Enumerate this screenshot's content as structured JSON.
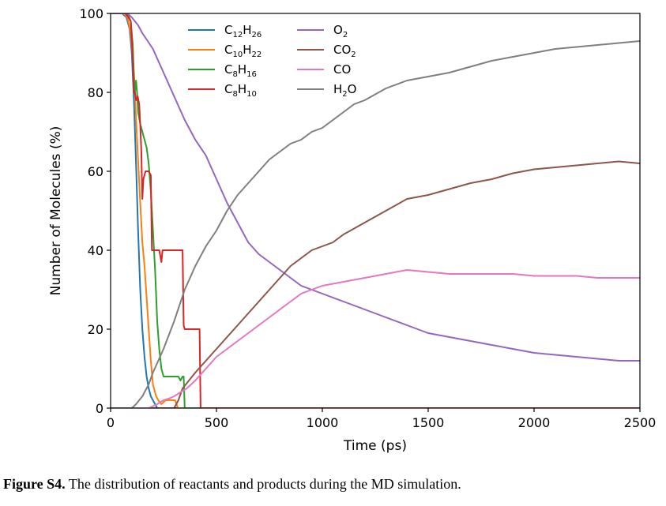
{
  "caption": {
    "label": "Figure S4.",
    "text": " The distribution of reactants and products during the MD simulation."
  },
  "chart_data": {
    "type": "line",
    "xlabel": "Time (ps)",
    "ylabel": "Number of Molecules (%)",
    "xlim": [
      0,
      2500
    ],
    "ylim": [
      0,
      100
    ],
    "xticks": [
      0,
      500,
      1000,
      1500,
      2000,
      2500
    ],
    "yticks": [
      0,
      20,
      40,
      60,
      80,
      100
    ],
    "grid": false,
    "legend_position": "top-center",
    "series": [
      {
        "name": "C12H26",
        "label_parts": [
          [
            "C",
            ""
          ],
          [
            "12",
            "sub"
          ],
          [
            "H",
            ""
          ],
          [
            "26",
            "sub"
          ]
        ],
        "color": "#1f77b4",
        "points": [
          [
            0,
            100
          ],
          [
            55,
            100
          ],
          [
            75,
            99
          ],
          [
            90,
            96
          ],
          [
            100,
            90
          ],
          [
            110,
            78
          ],
          [
            120,
            62
          ],
          [
            130,
            45
          ],
          [
            140,
            30
          ],
          [
            150,
            20
          ],
          [
            160,
            13
          ],
          [
            170,
            8
          ],
          [
            180,
            5
          ],
          [
            190,
            3
          ],
          [
            200,
            2
          ],
          [
            210,
            1
          ],
          [
            220,
            0
          ],
          [
            2500,
            0
          ]
        ]
      },
      {
        "name": "C10H22",
        "label_parts": [
          [
            "C",
            ""
          ],
          [
            "10",
            "sub"
          ],
          [
            "H",
            ""
          ],
          [
            "22",
            "sub"
          ]
        ],
        "color": "#ff7f0e",
        "points": [
          [
            0,
            100
          ],
          [
            60,
            100
          ],
          [
            80,
            99
          ],
          [
            95,
            95
          ],
          [
            110,
            85
          ],
          [
            125,
            68
          ],
          [
            140,
            52
          ],
          [
            150,
            42
          ],
          [
            160,
            36
          ],
          [
            170,
            28
          ],
          [
            180,
            20
          ],
          [
            190,
            12
          ],
          [
            200,
            6
          ],
          [
            215,
            3
          ],
          [
            225,
            2
          ],
          [
            240,
            1
          ],
          [
            260,
            2
          ],
          [
            290,
            2
          ],
          [
            305,
            2
          ],
          [
            318,
            0
          ],
          [
            2500,
            0
          ]
        ]
      },
      {
        "name": "C8H16",
        "label_parts": [
          [
            "C",
            ""
          ],
          [
            "8",
            "sub"
          ],
          [
            "H",
            ""
          ],
          [
            "16",
            "sub"
          ]
        ],
        "color": "#2ca02c",
        "points": [
          [
            0,
            100
          ],
          [
            60,
            100
          ],
          [
            80,
            100
          ],
          [
            95,
            98
          ],
          [
            105,
            92
          ],
          [
            110,
            84
          ],
          [
            115,
            80
          ],
          [
            120,
            83
          ],
          [
            125,
            80
          ],
          [
            130,
            75
          ],
          [
            140,
            72
          ],
          [
            150,
            70
          ],
          [
            160,
            68
          ],
          [
            170,
            66
          ],
          [
            180,
            62
          ],
          [
            190,
            55
          ],
          [
            200,
            45
          ],
          [
            210,
            35
          ],
          [
            220,
            22
          ],
          [
            230,
            15
          ],
          [
            240,
            10
          ],
          [
            250,
            8
          ],
          [
            260,
            8
          ],
          [
            280,
            8
          ],
          [
            300,
            8
          ],
          [
            320,
            8
          ],
          [
            330,
            7
          ],
          [
            340,
            8
          ],
          [
            345,
            8
          ],
          [
            350,
            0
          ],
          [
            2500,
            0
          ]
        ]
      },
      {
        "name": "C8H10",
        "label_parts": [
          [
            "C",
            ""
          ],
          [
            "8",
            "sub"
          ],
          [
            "H",
            ""
          ],
          [
            "10",
            "sub"
          ]
        ],
        "color": "#d62728",
        "points": [
          [
            0,
            100
          ],
          [
            70,
            100
          ],
          [
            85,
            99
          ],
          [
            95,
            98
          ],
          [
            100,
            94
          ],
          [
            105,
            88
          ],
          [
            110,
            80
          ],
          [
            115,
            80
          ],
          [
            120,
            78
          ],
          [
            128,
            79
          ],
          [
            135,
            77
          ],
          [
            140,
            72
          ],
          [
            145,
            65
          ],
          [
            150,
            53
          ],
          [
            155,
            58
          ],
          [
            160,
            59
          ],
          [
            165,
            60
          ],
          [
            180,
            60
          ],
          [
            190,
            59
          ],
          [
            195,
            40
          ],
          [
            200,
            40
          ],
          [
            230,
            40
          ],
          [
            240,
            37
          ],
          [
            245,
            40
          ],
          [
            260,
            40
          ],
          [
            300,
            40
          ],
          [
            330,
            40
          ],
          [
            340,
            40
          ],
          [
            345,
            21
          ],
          [
            350,
            20
          ],
          [
            380,
            20
          ],
          [
            410,
            20
          ],
          [
            420,
            20
          ],
          [
            425,
            0
          ],
          [
            2500,
            0
          ]
        ]
      },
      {
        "name": "O2",
        "label_parts": [
          [
            "O",
            ""
          ],
          [
            "2",
            "sub"
          ]
        ],
        "color": "#9467bd",
        "points": [
          [
            0,
            100
          ],
          [
            50,
            100
          ],
          [
            80,
            100
          ],
          [
            100,
            99
          ],
          [
            130,
            97
          ],
          [
            150,
            95
          ],
          [
            200,
            91
          ],
          [
            250,
            85
          ],
          [
            300,
            79
          ],
          [
            350,
            73
          ],
          [
            400,
            68
          ],
          [
            450,
            64
          ],
          [
            500,
            58
          ],
          [
            550,
            52
          ],
          [
            600,
            47
          ],
          [
            650,
            42
          ],
          [
            700,
            39
          ],
          [
            750,
            37
          ],
          [
            800,
            35
          ],
          [
            850,
            33
          ],
          [
            900,
            31
          ],
          [
            950,
            30
          ],
          [
            1000,
            29
          ],
          [
            1100,
            27
          ],
          [
            1200,
            25
          ],
          [
            1300,
            23
          ],
          [
            1400,
            21
          ],
          [
            1500,
            19
          ],
          [
            1600,
            18
          ],
          [
            1700,
            17
          ],
          [
            1800,
            16
          ],
          [
            1900,
            15
          ],
          [
            2000,
            14
          ],
          [
            2100,
            13.5
          ],
          [
            2200,
            13
          ],
          [
            2300,
            12.5
          ],
          [
            2400,
            12
          ],
          [
            2500,
            12
          ]
        ]
      },
      {
        "name": "CO2",
        "label_parts": [
          [
            "CO",
            ""
          ],
          [
            "2",
            "sub"
          ]
        ],
        "color": "#8c564b",
        "points": [
          [
            0,
            0
          ],
          [
            300,
            0
          ],
          [
            320,
            2
          ],
          [
            340,
            5
          ],
          [
            370,
            7
          ],
          [
            400,
            9
          ],
          [
            450,
            12
          ],
          [
            500,
            15
          ],
          [
            550,
            18
          ],
          [
            600,
            21
          ],
          [
            650,
            24
          ],
          [
            700,
            27
          ],
          [
            750,
            30
          ],
          [
            800,
            33
          ],
          [
            850,
            36
          ],
          [
            900,
            38
          ],
          [
            950,
            40
          ],
          [
            1000,
            41
          ],
          [
            1050,
            42
          ],
          [
            1100,
            44
          ],
          [
            1200,
            47
          ],
          [
            1300,
            50
          ],
          [
            1400,
            53
          ],
          [
            1500,
            54
          ],
          [
            1600,
            55.5
          ],
          [
            1700,
            57
          ],
          [
            1800,
            58
          ],
          [
            1900,
            59.5
          ],
          [
            2000,
            60.5
          ],
          [
            2100,
            61
          ],
          [
            2200,
            61.5
          ],
          [
            2300,
            62
          ],
          [
            2400,
            62.5
          ],
          [
            2500,
            62
          ]
        ]
      },
      {
        "name": "CO",
        "label_parts": [
          [
            "CO",
            ""
          ]
        ],
        "color": "#e377c2",
        "points": [
          [
            0,
            0
          ],
          [
            180,
            0
          ],
          [
            200,
            0.5
          ],
          [
            220,
            1
          ],
          [
            250,
            2
          ],
          [
            280,
            2.5
          ],
          [
            300,
            3
          ],
          [
            330,
            4
          ],
          [
            360,
            5
          ],
          [
            400,
            7
          ],
          [
            450,
            10
          ],
          [
            500,
            13
          ],
          [
            550,
            15
          ],
          [
            600,
            17
          ],
          [
            650,
            19
          ],
          [
            700,
            21
          ],
          [
            750,
            23
          ],
          [
            800,
            25
          ],
          [
            850,
            27
          ],
          [
            900,
            29
          ],
          [
            950,
            30
          ],
          [
            1000,
            31
          ],
          [
            1100,
            32
          ],
          [
            1200,
            33
          ],
          [
            1300,
            34
          ],
          [
            1400,
            35
          ],
          [
            1500,
            34.5
          ],
          [
            1600,
            34
          ],
          [
            1700,
            34
          ],
          [
            1800,
            34
          ],
          [
            1900,
            34
          ],
          [
            2000,
            33.5
          ],
          [
            2100,
            33.5
          ],
          [
            2200,
            33.5
          ],
          [
            2300,
            33
          ],
          [
            2400,
            33
          ],
          [
            2500,
            33
          ]
        ]
      },
      {
        "name": "H2O",
        "label_parts": [
          [
            "H",
            ""
          ],
          [
            "2",
            "sub"
          ],
          [
            "O",
            ""
          ]
        ],
        "color": "#7f7f7f",
        "points": [
          [
            0,
            0
          ],
          [
            100,
            0
          ],
          [
            120,
            1
          ],
          [
            150,
            3
          ],
          [
            180,
            6
          ],
          [
            200,
            9
          ],
          [
            250,
            15
          ],
          [
            300,
            22
          ],
          [
            350,
            30
          ],
          [
            400,
            36
          ],
          [
            450,
            41
          ],
          [
            500,
            45
          ],
          [
            550,
            50
          ],
          [
            600,
            54
          ],
          [
            650,
            57
          ],
          [
            700,
            60
          ],
          [
            750,
            63
          ],
          [
            800,
            65
          ],
          [
            850,
            67
          ],
          [
            900,
            68
          ],
          [
            950,
            70
          ],
          [
            1000,
            71
          ],
          [
            1050,
            73
          ],
          [
            1100,
            75
          ],
          [
            1150,
            77
          ],
          [
            1200,
            78
          ],
          [
            1300,
            81
          ],
          [
            1400,
            83
          ],
          [
            1500,
            84
          ],
          [
            1600,
            85
          ],
          [
            1700,
            86.5
          ],
          [
            1800,
            88
          ],
          [
            1900,
            89
          ],
          [
            2000,
            90
          ],
          [
            2100,
            91
          ],
          [
            2200,
            91.5
          ],
          [
            2300,
            92
          ],
          [
            2400,
            92.5
          ],
          [
            2500,
            93
          ]
        ]
      }
    ]
  }
}
